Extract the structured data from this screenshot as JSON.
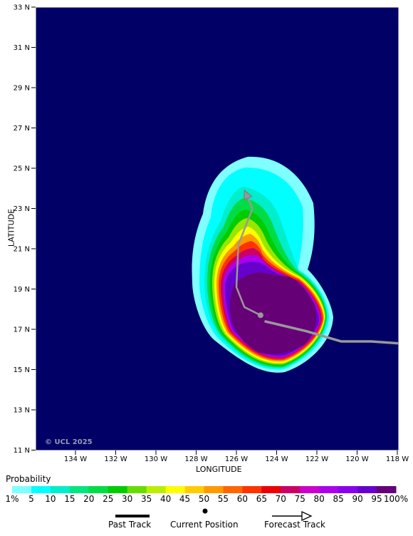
{
  "map": {
    "copyright": "© UCL 2025",
    "x_axis_title": "LONGITUDE",
    "y_axis_title": "LATITUDE",
    "lat_labels": [
      "33 N",
      "31 N",
      "29 N",
      "27 N",
      "25 N",
      "23 N",
      "21 N",
      "19 N",
      "17 N",
      "15 N",
      "13 N",
      "11 N"
    ],
    "lon_labels": [
      "134 W",
      "132 W",
      "130 W",
      "128 W",
      "126 W",
      "124 W",
      "122 W",
      "120 W",
      "118 W"
    ],
    "ocean_color": "#000066",
    "past_track": [
      [
        -117.9,
        16.3
      ],
      [
        -119.3,
        16.4
      ],
      [
        -120.8,
        16.4
      ],
      [
        -122.5,
        16.9
      ],
      [
        -124.6,
        17.4
      ]
    ],
    "current_position": [
      -124.8,
      17.7
    ],
    "forecast_track": [
      [
        -124.8,
        17.7
      ],
      [
        -125.6,
        18.1
      ],
      [
        -126.0,
        19.1
      ],
      [
        -125.9,
        21.2
      ],
      [
        -125.2,
        23.0
      ],
      [
        -125.6,
        23.9
      ]
    ]
  },
  "legend": {
    "title": "Probability",
    "tick_labels": [
      "1%",
      "5",
      "10",
      "15",
      "20",
      "25",
      "30",
      "35",
      "40",
      "45",
      "50",
      "55",
      "60",
      "65",
      "70",
      "75",
      "80",
      "85",
      "90",
      "95",
      "100%"
    ],
    "colors": [
      "#7fffff",
      "#00ffff",
      "#00eecc",
      "#00e680",
      "#00dd44",
      "#00cc00",
      "#66dd00",
      "#bbee00",
      "#ffff00",
      "#ffcc00",
      "#ff9900",
      "#ff6600",
      "#ff3300",
      "#ee0000",
      "#cc0066",
      "#cc00cc",
      "#aa00ee",
      "#8800ee",
      "#6600cc",
      "#660077"
    ],
    "past_track_label": "Past Track",
    "current_position_label": "Current Position",
    "forecast_track_label": "Forecast Track"
  }
}
